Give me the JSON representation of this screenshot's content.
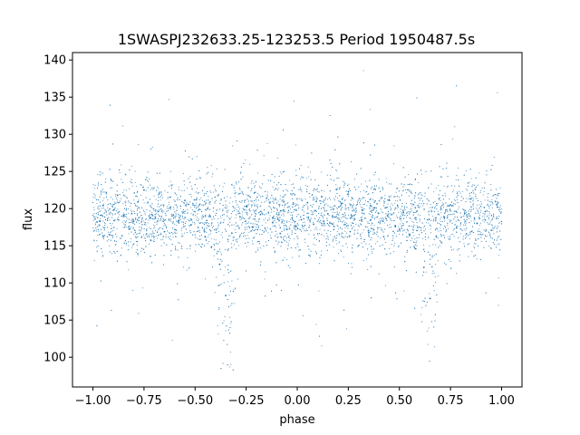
{
  "chart_data": {
    "type": "scatter",
    "title": "1SWASPJ232633.25-123253.5 Period 1950487.5s",
    "xlabel": "phase",
    "ylabel": "flux",
    "xlim": [
      -1.1,
      1.1
    ],
    "ylim": [
      96,
      141
    ],
    "x_ticks": [
      -1.0,
      -0.75,
      -0.5,
      -0.25,
      0.0,
      0.25,
      0.5,
      0.75,
      1.0
    ],
    "x_tick_labels": [
      "−1.00",
      "−0.75",
      "−0.50",
      "−0.25",
      "0.00",
      "0.25",
      "0.50",
      "0.75",
      "1.00"
    ],
    "y_ticks": [
      100,
      105,
      110,
      115,
      120,
      125,
      130,
      135,
      140
    ],
    "y_tick_labels": [
      "100",
      "105",
      "110",
      "115",
      "120",
      "125",
      "130",
      "135",
      "140"
    ],
    "grid": false,
    "marker_color": "#1f77b4",
    "series": [
      {
        "phase_range": [
          -1.0,
          1.0
        ],
        "flux_median": 119,
        "flux_core_range": [
          113,
          123
        ],
        "flux_full_range": [
          98,
          139
        ],
        "deep_dips_near_phase": [
          -0.35,
          0.65
        ],
        "points": [
          [
            -0.98,
            118.2
          ],
          [
            -0.95,
            120.4
          ],
          [
            -0.92,
            116.5
          ],
          [
            -0.88,
            121.8
          ],
          [
            -0.85,
            119.1
          ],
          [
            -0.82,
            117.3
          ],
          [
            -0.78,
            120.9
          ],
          [
            -0.75,
            122.5
          ],
          [
            -0.72,
            118.7
          ],
          [
            -0.68,
            119.6
          ],
          [
            -0.65,
            116.9
          ],
          [
            -0.62,
            120.2
          ],
          [
            -0.58,
            118.4
          ],
          [
            -0.55,
            121.1
          ],
          [
            -0.52,
            117.8
          ],
          [
            -0.48,
            119.9
          ],
          [
            -0.45,
            116.2
          ],
          [
            -0.42,
            114.8
          ],
          [
            -0.38,
            112.5
          ],
          [
            -0.35,
            108.3
          ],
          [
            -0.32,
            116.7
          ],
          [
            -0.28,
            118.9
          ],
          [
            -0.25,
            120.3
          ],
          [
            -0.22,
            117.5
          ],
          [
            -0.18,
            119.2
          ],
          [
            -0.15,
            121.4
          ],
          [
            -0.12,
            118.1
          ],
          [
            -0.08,
            119.7
          ],
          [
            -0.05,
            117.2
          ],
          [
            -0.02,
            120.6
          ],
          [
            0.02,
            118.5
          ],
          [
            0.05,
            120.8
          ],
          [
            0.08,
            117.9
          ],
          [
            0.12,
            121.6
          ],
          [
            0.15,
            119.3
          ],
          [
            0.18,
            117.6
          ],
          [
            0.22,
            120.7
          ],
          [
            0.25,
            122.3
          ],
          [
            0.28,
            118.6
          ],
          [
            0.32,
            119.8
          ],
          [
            0.35,
            116.8
          ],
          [
            0.38,
            120.1
          ],
          [
            0.42,
            118.3
          ],
          [
            0.45,
            121.2
          ],
          [
            0.48,
            117.7
          ],
          [
            0.52,
            119.5
          ],
          [
            0.55,
            116.4
          ],
          [
            0.58,
            114.6
          ],
          [
            0.62,
            112.1
          ],
          [
            0.65,
            107.9
          ],
          [
            0.68,
            116.3
          ],
          [
            0.72,
            118.8
          ],
          [
            0.75,
            120.5
          ],
          [
            0.78,
            117.4
          ],
          [
            0.82,
            119.4
          ],
          [
            0.85,
            121.3
          ],
          [
            0.88,
            118.0
          ],
          [
            0.92,
            119.6
          ],
          [
            0.95,
            117.1
          ],
          [
            0.98,
            120.2
          ]
        ]
      }
    ]
  }
}
